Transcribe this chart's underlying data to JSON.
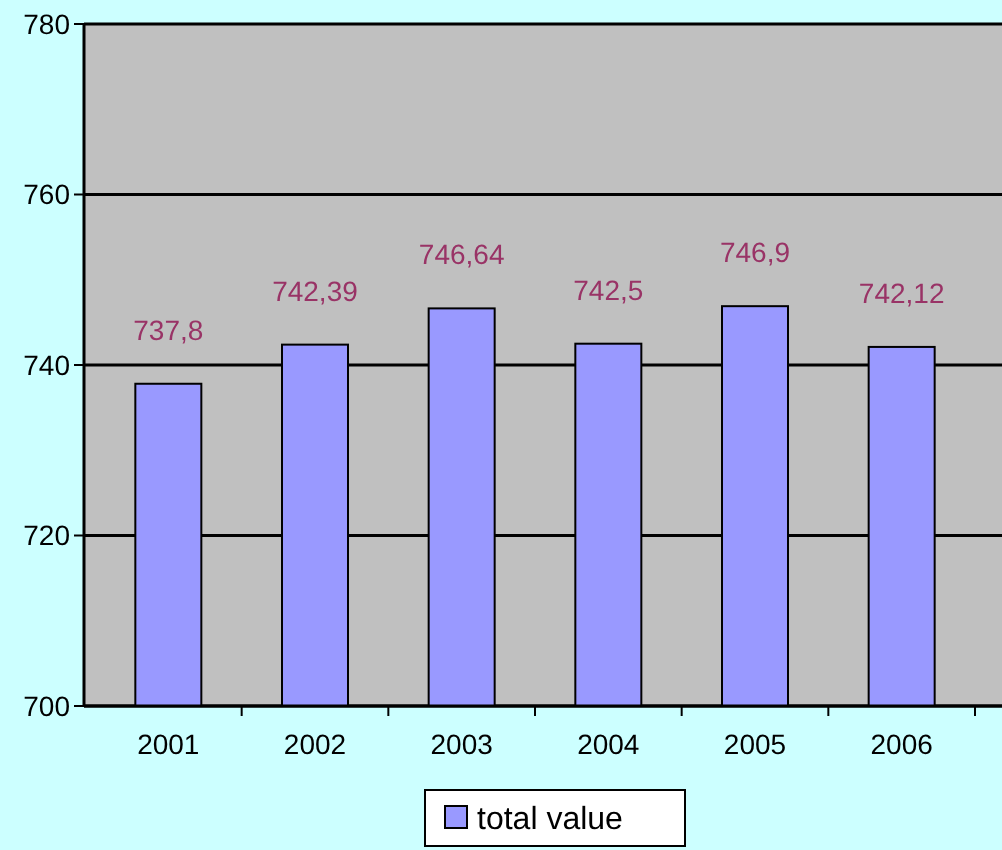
{
  "chart_data": {
    "type": "bar",
    "categories": [
      "2001",
      "2002",
      "2003",
      "2004",
      "2005",
      "2006"
    ],
    "series": [
      {
        "name": "total value",
        "color": "#9999ff",
        "values": [
          737.8,
          742.39,
          746.64,
          742.5,
          746.9,
          742.12
        ],
        "value_labels": [
          "737,8",
          "742,39",
          "746,64",
          "742,5",
          "746,9",
          "742,12"
        ]
      }
    ],
    "ylim": [
      700,
      780
    ],
    "yticks": [
      700,
      720,
      740,
      760,
      780
    ],
    "grid": "y",
    "legend": "bottom"
  }
}
